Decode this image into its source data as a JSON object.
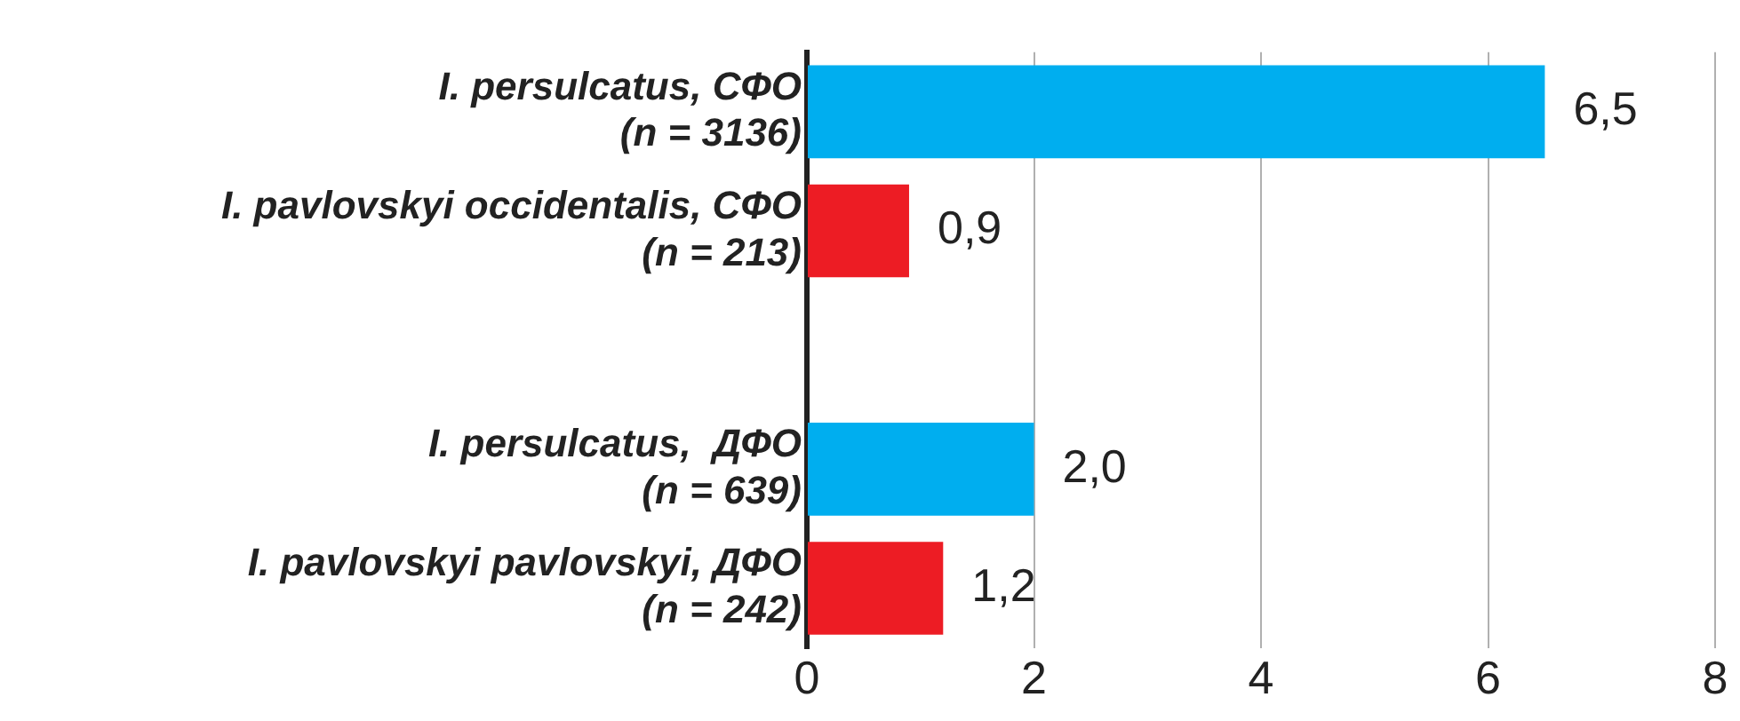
{
  "chart_data": {
    "type": "bar",
    "orientation": "horizontal",
    "categories": [
      "I. persulcatus, СФО\n(n = 3136)",
      "I. pavlovskyi occidentalis, СФО\n(n = 213)",
      null,
      "I. persulcatus,  ДФО\n(n = 639)",
      "I. pavlovskyi pavlovskyi, ДФО\n(n = 242)"
    ],
    "values": [
      6.5,
      0.9,
      null,
      2.0,
      1.2
    ],
    "colors": [
      "#00aeef",
      "#ed1c24",
      null,
      "#00aeef",
      "#ed1c24"
    ],
    "value_labels": [
      "6,5",
      "0,9",
      null,
      "2,0",
      "1,2"
    ],
    "xlim": [
      0,
      8
    ],
    "xticks": [
      0,
      2,
      4,
      6,
      8
    ],
    "grid": "x",
    "legend": false
  }
}
